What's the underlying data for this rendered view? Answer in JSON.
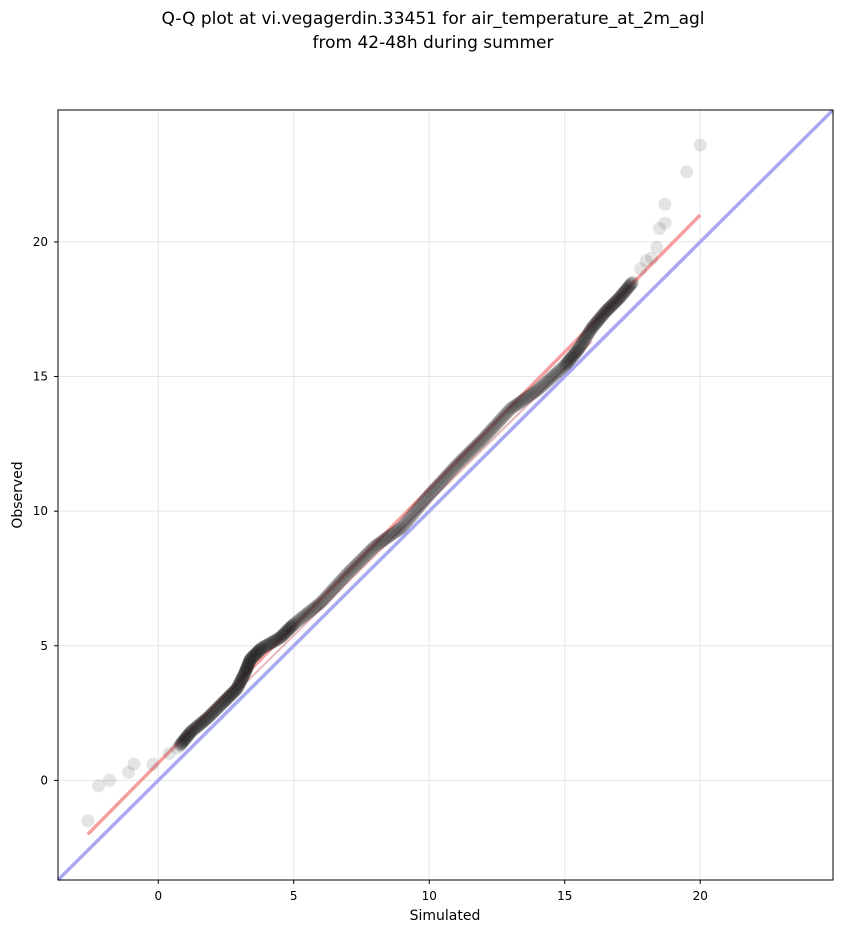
{
  "chart_data": {
    "type": "scatter",
    "title": "Q-Q plot at vi.vegagerdin.33451 for air_temperature_at_2m_agl",
    "subtitle": "from 42-48h during summer",
    "xlabel": "Simulated",
    "ylabel": "Observed",
    "xlim": [
      -3.7,
      24.9
    ],
    "ylim": [
      -3.7,
      24.9
    ],
    "xticks": [
      0,
      5,
      10,
      15,
      20
    ],
    "yticks": [
      0,
      5,
      10,
      15,
      20
    ],
    "grid": true,
    "colors": {
      "points": "#222222",
      "fit_line": "#f4a0a0",
      "identity_line": "#a9a9f2",
      "grid": "#e6e6e6"
    },
    "outlier_points": [
      {
        "x": -2.6,
        "y": -1.5
      },
      {
        "x": -2.2,
        "y": -0.2
      },
      {
        "x": -1.8,
        "y": 0.0
      },
      {
        "x": -1.1,
        "y": 0.3
      },
      {
        "x": -0.9,
        "y": 0.6
      },
      {
        "x": -0.2,
        "y": 0.6
      },
      {
        "x": 0.4,
        "y": 1.0
      },
      {
        "x": 0.7,
        "y": 1.2
      },
      {
        "x": 17.8,
        "y": 19.0
      },
      {
        "x": 18.0,
        "y": 19.3
      },
      {
        "x": 18.2,
        "y": 19.4
      },
      {
        "x": 18.4,
        "y": 19.8
      },
      {
        "x": 18.5,
        "y": 20.5
      },
      {
        "x": 18.7,
        "y": 20.7
      },
      {
        "x": 18.7,
        "y": 21.4
      },
      {
        "x": 19.5,
        "y": 22.6
      },
      {
        "x": 20.0,
        "y": 23.6
      }
    ],
    "quantile_curve": [
      {
        "x": 0.8,
        "y": 1.3
      },
      {
        "x": 1.2,
        "y": 1.8
      },
      {
        "x": 1.8,
        "y": 2.3
      },
      {
        "x": 2.4,
        "y": 2.9
      },
      {
        "x": 2.9,
        "y": 3.4
      },
      {
        "x": 3.2,
        "y": 4.0
      },
      {
        "x": 3.4,
        "y": 4.5
      },
      {
        "x": 3.8,
        "y": 4.9
      },
      {
        "x": 4.5,
        "y": 5.3
      },
      {
        "x": 5.0,
        "y": 5.8
      },
      {
        "x": 6.0,
        "y": 6.6
      },
      {
        "x": 7.0,
        "y": 7.7
      },
      {
        "x": 8.0,
        "y": 8.7
      },
      {
        "x": 9.0,
        "y": 9.4
      },
      {
        "x": 10.0,
        "y": 10.6
      },
      {
        "x": 11.0,
        "y": 11.7
      },
      {
        "x": 12.0,
        "y": 12.7
      },
      {
        "x": 13.0,
        "y": 13.8
      },
      {
        "x": 14.0,
        "y": 14.5
      },
      {
        "x": 15.0,
        "y": 15.4
      },
      {
        "x": 15.5,
        "y": 16.0
      },
      {
        "x": 16.0,
        "y": 16.8
      },
      {
        "x": 16.5,
        "y": 17.4
      },
      {
        "x": 17.0,
        "y": 17.9
      },
      {
        "x": 17.5,
        "y": 18.5
      }
    ],
    "fit_line": {
      "x": [
        -2.6,
        20.0
      ],
      "y": [
        -2.0,
        21.0
      ]
    },
    "identity_line": {
      "x": [
        -3.7,
        24.9
      ],
      "y": [
        -3.7,
        24.9
      ]
    }
  }
}
